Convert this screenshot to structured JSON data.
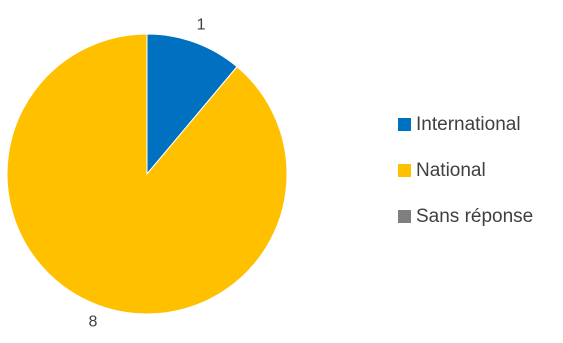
{
  "chart_data": {
    "type": "pie",
    "categories": [
      "International",
      "National",
      "Sans réponse"
    ],
    "values": [
      1,
      8,
      0
    ],
    "data_labels": [
      "1",
      "8",
      ""
    ],
    "colors": [
      "#0070C0",
      "#FFC000",
      "#7F7F7F"
    ],
    "legend_position": "right",
    "title": ""
  }
}
